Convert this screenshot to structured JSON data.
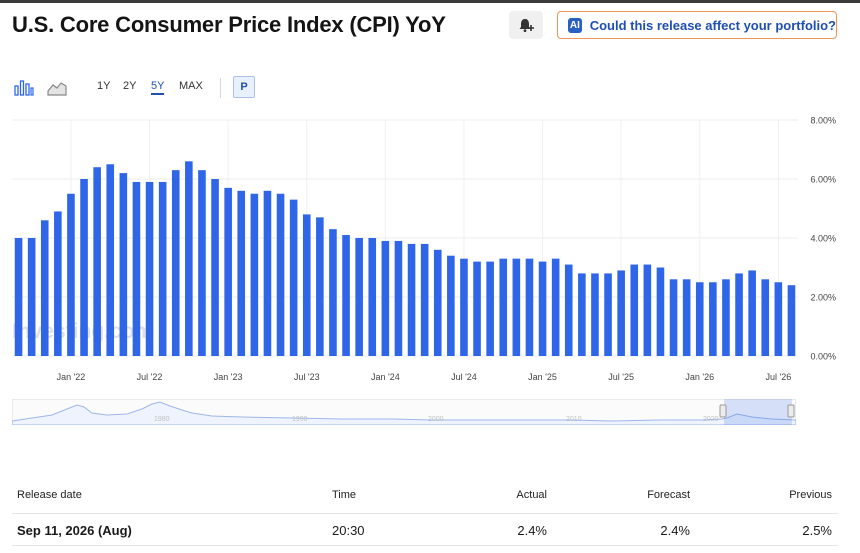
{
  "header": {
    "title": "U.S. Core Consumer Price Index (CPI) YoY",
    "ai_badge": "AI",
    "ai_button_label": "Could this release affect your portfolio?"
  },
  "toolbar": {
    "ranges": [
      "1Y",
      "2Y",
      "5Y",
      "MAX"
    ],
    "active_range": "5Y",
    "p_button": "P"
  },
  "watermark": "Investing.com",
  "navigator": {
    "labels": [
      "1980",
      "1990",
      "2000",
      "2010",
      "2020"
    ]
  },
  "chart_data": {
    "type": "bar",
    "x_tick_labels": [
      "Jan '22",
      "Jul '22",
      "Jan '23",
      "Jul '23",
      "Jan '24",
      "Jul '24",
      "Jan '25",
      "Jul '25",
      "Jan '26",
      "Jul '26"
    ],
    "y_tick_labels": [
      "8.00%",
      "6.00%",
      "4.00%",
      "2.00%",
      "0.00%"
    ],
    "ylim": [
      0,
      8
    ],
    "grid": true,
    "series_color": "#2f66e8",
    "first_period": "Sep 2021",
    "values": [
      4.0,
      4.0,
      4.6,
      4.9,
      5.5,
      6.0,
      6.4,
      6.5,
      6.2,
      5.9,
      5.9,
      5.9,
      6.3,
      6.6,
      6.3,
      6.0,
      5.7,
      5.6,
      5.5,
      5.6,
      5.5,
      5.3,
      4.8,
      4.7,
      4.3,
      4.1,
      4.0,
      4.0,
      3.9,
      3.9,
      3.8,
      3.8,
      3.6,
      3.4,
      3.3,
      3.2,
      3.2,
      3.3,
      3.3,
      3.3,
      3.2,
      3.3,
      3.1,
      2.8,
      2.8,
      2.8,
      2.9,
      3.1,
      3.1,
      3.0,
      2.6,
      2.6,
      2.5,
      2.5,
      2.6,
      2.8,
      2.9,
      2.6,
      2.5,
      2.4
    ]
  },
  "table": {
    "headers": [
      "Release date",
      "Time",
      "Actual",
      "Forecast",
      "Previous"
    ],
    "rows": [
      {
        "date": "Sep 11, 2026 (Aug)",
        "time": "20:30",
        "actual": "2.4%",
        "forecast": "2.4%",
        "previous": "2.5%"
      }
    ]
  }
}
